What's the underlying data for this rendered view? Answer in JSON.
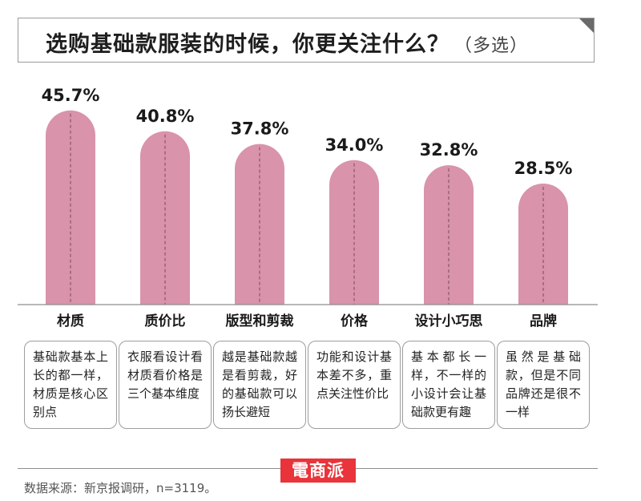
{
  "header": {
    "title": "选购基础款服装的时候，你更关注什么？",
    "subtitle": "（多选）"
  },
  "chart_data": {
    "type": "bar",
    "title": "选购基础款服装的时候，你更关注什么？（多选）",
    "categories": [
      "材质",
      "质价比",
      "版型和剪裁",
      "价格",
      "设计小巧思",
      "品牌"
    ],
    "values": [
      45.7,
      40.8,
      37.8,
      34.0,
      32.8,
      28.5
    ],
    "value_labels": [
      "45.7%",
      "40.8%",
      "37.8%",
      "34.0%",
      "32.8%",
      "28.5%"
    ],
    "unit": "%",
    "ylim": [
      0,
      50
    ],
    "colors": {
      "bar": "#d993ab",
      "dash": "#7a4a5c",
      "axis": "#8e8e8e"
    },
    "descriptions": [
      "基础款基本上长的都一样，材质是核心区别点",
      "衣服看设计看材质看价格是三个基本维度",
      "越是基础款越是看剪裁，好的基础款可以扬长避短",
      "功能和设计基本差不多，重点关注性价比",
      "基本都长一样，不一样的小设计会让基础款更有趣",
      "虽然是基础款，但是不同品牌还是很不一样"
    ]
  },
  "footer": {
    "source": "数据来源：新京报调研，n=3119。",
    "watermark": "電商派"
  }
}
